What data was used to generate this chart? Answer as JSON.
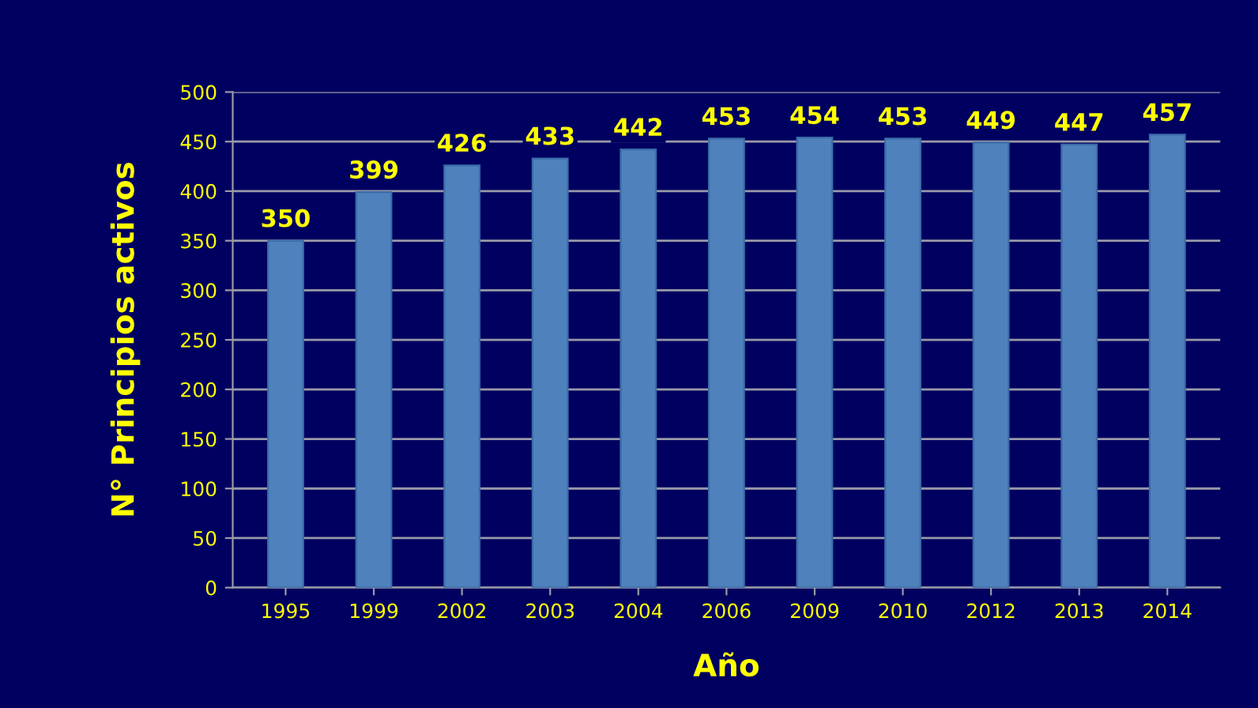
{
  "chart_data": {
    "type": "bar",
    "categories": [
      "1995",
      "1999",
      "2002",
      "2003",
      "2004",
      "2006",
      "2009",
      "2010",
      "2012",
      "2013",
      "2014"
    ],
    "values": [
      350,
      399,
      426,
      433,
      442,
      453,
      454,
      453,
      449,
      447,
      457
    ],
    "color": "#4f81bd",
    "xlabel": "Año",
    "ylabel": "N° Principios activos",
    "ylim": [
      0,
      500
    ],
    "yticks": [
      0,
      50,
      100,
      150,
      200,
      250,
      300,
      350,
      400,
      450,
      500
    ],
    "grid": "y",
    "data_labels": true
  }
}
